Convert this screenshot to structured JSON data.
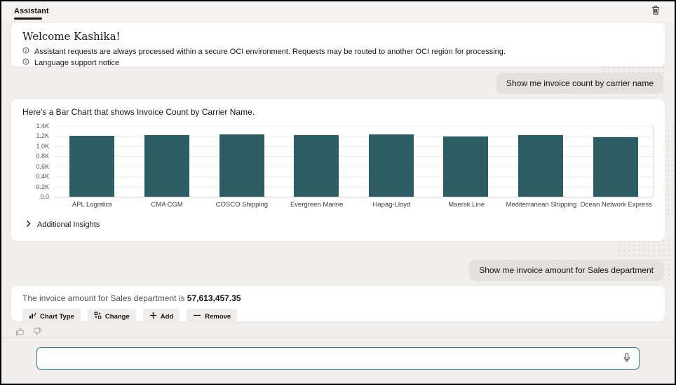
{
  "header": {
    "tab": "Assistant",
    "trash_icon": "trash-icon"
  },
  "welcome": {
    "title": "Welcome Kashika!",
    "notice_icon": "info-icon",
    "notices": [
      "Assistant requests are always processed within a secure OCI environment. Requests may be routed to another OCI region for processing.",
      "Language support notice"
    ]
  },
  "messages": {
    "user1": "Show me invoice count by carrier name",
    "user2": "Show me invoice amount for Sales department"
  },
  "chart_card": {
    "intro": "Here's a Bar Chart that shows Invoice Count by Carrier Name.",
    "additional_insights": "Additional Insights",
    "chevron_icon": "chevron-right-icon"
  },
  "chart_data": {
    "type": "bar",
    "title": "Invoice Count by Carrier Name",
    "categories": [
      "APL Logistics",
      "CMA CGM",
      "COSCO Shipping",
      "Evergreen Marine",
      "Hapag-Lloyd",
      "Maersk Line",
      "Mediterranean Shipping",
      "Ocean Network Express"
    ],
    "values": [
      1210,
      1220,
      1230,
      1220,
      1230,
      1190,
      1220,
      1180
    ],
    "xlabel": "",
    "ylabel": "",
    "ylim": [
      0,
      1400
    ],
    "yticks": [
      "1.4K",
      "1.2K",
      "1.0K",
      "0.8K",
      "0.6K",
      "0.4K",
      "0.2K",
      "0.0"
    ],
    "grid": true,
    "legend": false,
    "bar_color": "#2c5d63"
  },
  "response": {
    "text_prefix": "The invoice amount for Sales department is ",
    "amount": "57,613,457.35",
    "actions": [
      {
        "label": "Chart Type",
        "icon": "chart-type-icon"
      },
      {
        "label": "Change",
        "icon": "change-icon"
      },
      {
        "label": "Add",
        "icon": "plus-icon"
      },
      {
        "label": "Remove",
        "icon": "minus-icon"
      }
    ]
  },
  "feedback": {
    "like_icon": "thumbs-up-icon",
    "dislike_icon": "thumbs-down-icon"
  },
  "input": {
    "value": "",
    "placeholder": "",
    "mic_icon": "microphone-icon"
  },
  "colors": {
    "accent_bar": "#2c5d63",
    "bubble": "#e4e1dd",
    "background": "#f1efed",
    "input_border": "#2e7c9c",
    "text": "#161513"
  }
}
